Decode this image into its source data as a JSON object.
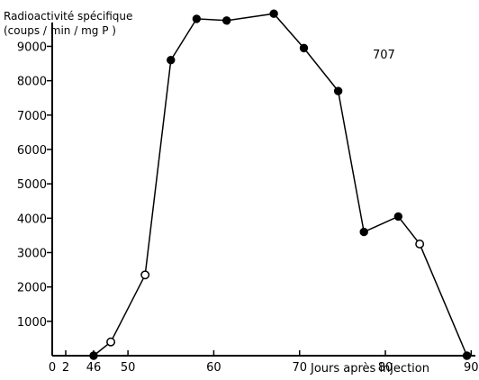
{
  "chart_data": {
    "type": "line",
    "ylabel_line1": "Radioactivité spécifique",
    "ylabel_line2": "(coups / min / mg P )",
    "annotation": "707",
    "xlabel": "Jours  après  injection",
    "x_ticks": [
      0,
      2,
      46,
      50,
      60,
      70,
      80,
      90
    ],
    "y_ticks": [
      1000,
      2000,
      3000,
      4000,
      5000,
      6000,
      7000,
      8000,
      9000
    ],
    "points": [
      {
        "x": 46,
        "y": 0,
        "filled": true
      },
      {
        "x": 48,
        "y": 400,
        "filled": false
      },
      {
        "x": 52,
        "y": 2350,
        "filled": false
      },
      {
        "x": 55,
        "y": 8600,
        "filled": true
      },
      {
        "x": 58,
        "y": 9800,
        "filled": true
      },
      {
        "x": 61.5,
        "y": 9750,
        "filled": true
      },
      {
        "x": 67,
        "y": 9950,
        "filled": true
      },
      {
        "x": 70.5,
        "y": 8950,
        "filled": true
      },
      {
        "x": 74.5,
        "y": 7700,
        "filled": true
      },
      {
        "x": 77.5,
        "y": 3600,
        "filled": true
      },
      {
        "x": 81.5,
        "y": 4050,
        "filled": true
      },
      {
        "x": 84,
        "y": 3250,
        "filled": false
      },
      {
        "x": 89.5,
        "y": 0,
        "filled": true
      }
    ]
  }
}
